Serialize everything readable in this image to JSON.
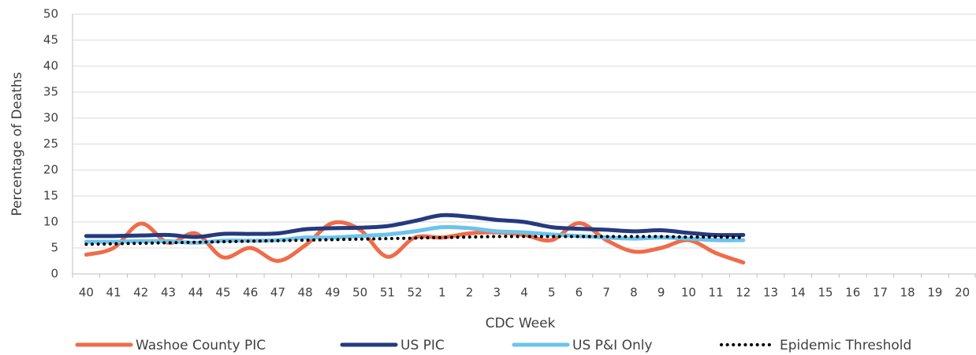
{
  "chart_data": {
    "type": "line",
    "y_label": "Percentage of Deaths",
    "x_label": "CDC Week",
    "categories": [
      "40",
      "41",
      "42",
      "43",
      "44",
      "45",
      "46",
      "47",
      "48",
      "49",
      "50",
      "51",
      "52",
      "1",
      "2",
      "3",
      "4",
      "5",
      "6",
      "7",
      "8",
      "9",
      "10",
      "11",
      "12",
      "13",
      "14",
      "15",
      "16",
      "17",
      "18",
      "19",
      "20"
    ],
    "series": [
      {
        "name": "Washoe County PIC",
        "color": "#ef6c4a",
        "line_style": "solid",
        "values": [
          3.7,
          5,
          9.7,
          6,
          7.8,
          3.2,
          5,
          2.5,
          5.5,
          9.8,
          8.5,
          3.3,
          7,
          7,
          7.8,
          8,
          7.5,
          6.5,
          9.8,
          6.5,
          4.3,
          5,
          6.5,
          4,
          2.2,
          null,
          null,
          null,
          null,
          null,
          null,
          null,
          null
        ]
      },
      {
        "name": "US PIC",
        "color": "#253a7e",
        "line_style": "solid",
        "values": [
          7.3,
          7.3,
          7.4,
          7.5,
          7.1,
          7.7,
          7.7,
          7.8,
          8.6,
          8.8,
          8.9,
          9.2,
          10.2,
          11.3,
          11,
          10.4,
          10,
          9,
          8.7,
          8.5,
          8.2,
          8.4,
          7.9,
          7.5,
          7.5,
          null,
          null,
          null,
          null,
          null,
          null,
          null,
          null
        ]
      },
      {
        "name": "US P&I Only",
        "color": "#6cc3ec",
        "line_style": "solid",
        "values": [
          6.2,
          6.2,
          6.3,
          6.3,
          6,
          6.4,
          6.4,
          6.5,
          7,
          7,
          7.3,
          7.6,
          8.2,
          9,
          8.8,
          8.2,
          8,
          7.6,
          7.3,
          7,
          6.8,
          7,
          6.8,
          6.5,
          6.5,
          null,
          null,
          null,
          null,
          null,
          null,
          null,
          null
        ]
      },
      {
        "name": "Epidemic Threshold",
        "color": "#000000",
        "line_style": "dotted",
        "values": [
          5.7,
          5.8,
          5.9,
          6,
          6.1,
          6.2,
          6.3,
          6.4,
          6.5,
          6.6,
          6.7,
          6.8,
          6.9,
          7,
          7.1,
          7.2,
          7.2,
          7.2,
          7.2,
          7.2,
          7.2,
          7.2,
          7.1,
          7.1,
          7,
          null,
          null,
          null,
          null,
          null,
          null,
          null,
          null
        ]
      }
    ],
    "ylim": [
      0,
      50
    ],
    "yticks": [
      0,
      5,
      10,
      15,
      20,
      25,
      30,
      35,
      40,
      45,
      50
    ],
    "grid": true,
    "legend": "bottom"
  }
}
